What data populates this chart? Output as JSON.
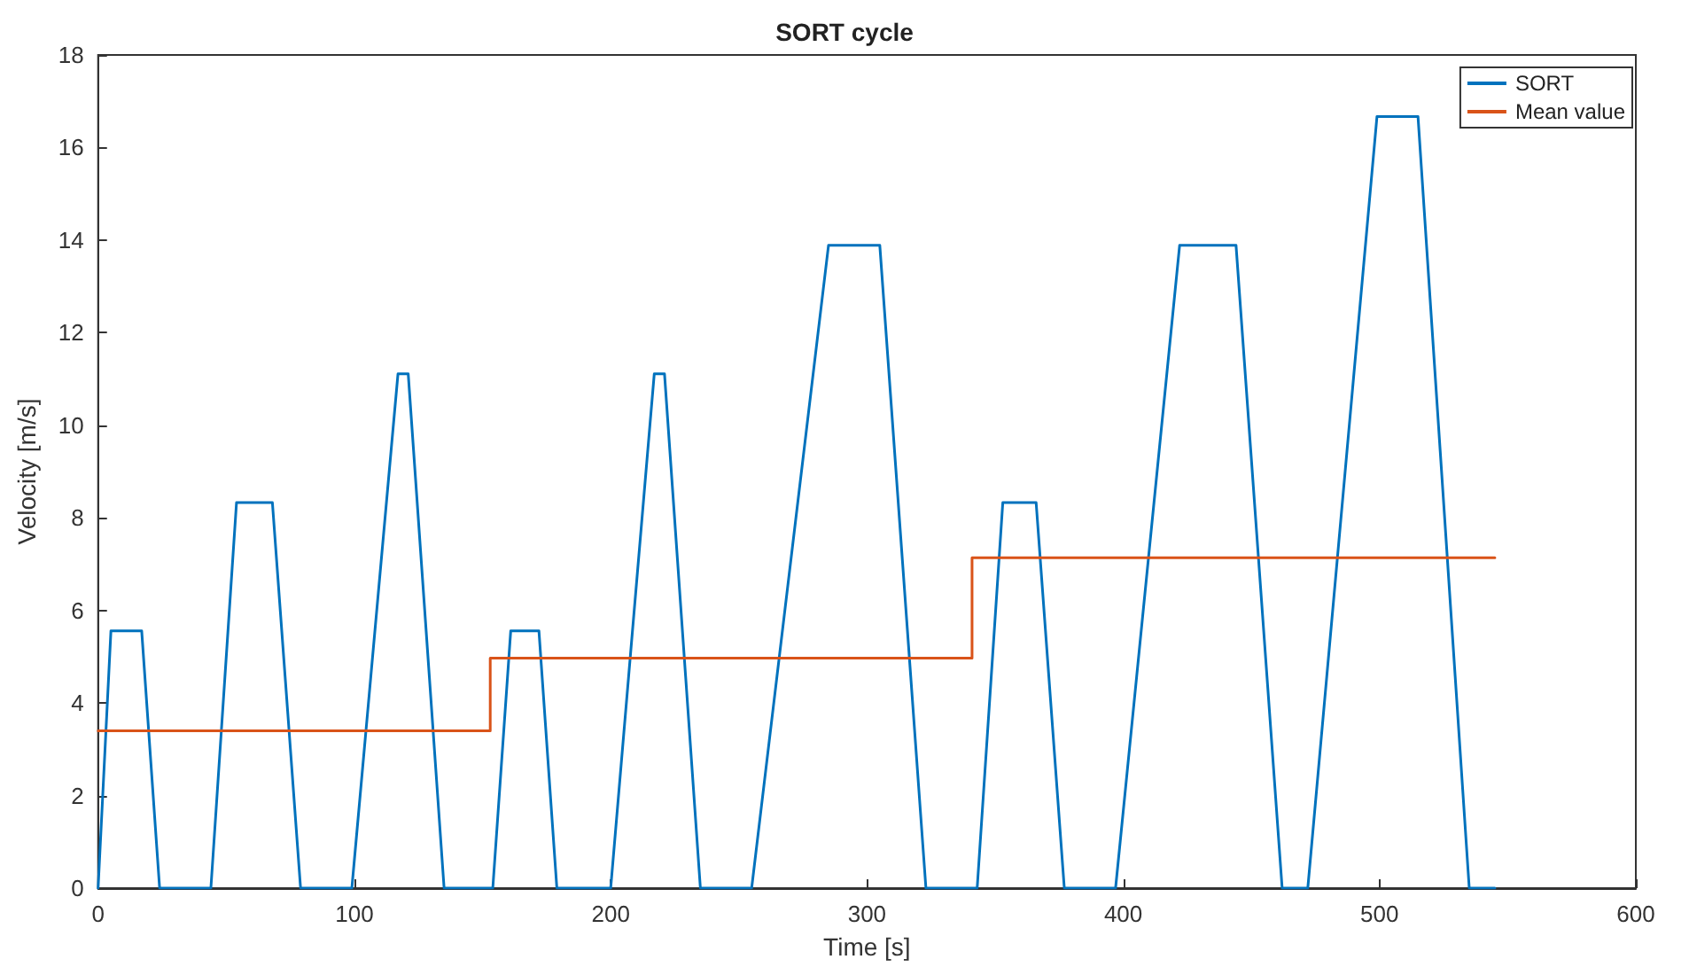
{
  "chart_data": {
    "type": "line",
    "title": "SORT cycle",
    "xlabel": "Time [s]",
    "ylabel": "Velocity [m/s]",
    "xlim": [
      0,
      600
    ],
    "xticks": [
      0,
      100,
      200,
      300,
      400,
      500,
      600
    ],
    "ylim": [
      0,
      18
    ],
    "yticks": [
      0,
      2,
      4,
      6,
      8,
      10,
      12,
      14,
      16,
      18
    ],
    "grid": false,
    "legend": "top right",
    "marker": "none",
    "line_style": "solid",
    "series": [
      {
        "name": "SORT",
        "color": "#0072bd",
        "x": [
          0,
          5,
          17,
          24,
          44,
          54,
          68,
          79,
          99,
          117,
          121,
          135,
          154,
          161,
          172,
          179,
          200,
          217,
          221,
          235,
          255,
          285,
          305,
          323,
          343,
          353,
          366,
          377,
          397,
          422,
          444,
          462,
          472,
          499,
          515,
          535,
          545
        ],
        "values": [
          0,
          5.56,
          5.56,
          0,
          0,
          8.33,
          8.33,
          0,
          0,
          11.11,
          11.11,
          0,
          0,
          5.56,
          5.56,
          0,
          0,
          11.11,
          11.11,
          0,
          0,
          13.89,
          13.89,
          0,
          0,
          8.33,
          8.33,
          0,
          0,
          13.89,
          13.89,
          0,
          0,
          16.67,
          16.67,
          0,
          0
        ]
      },
      {
        "name": "Mean value",
        "type": "step",
        "color": "#d95319",
        "x": [
          0,
          153,
          341,
          545
        ],
        "values": [
          3.4,
          4.97,
          7.14,
          7.14
        ]
      }
    ]
  }
}
